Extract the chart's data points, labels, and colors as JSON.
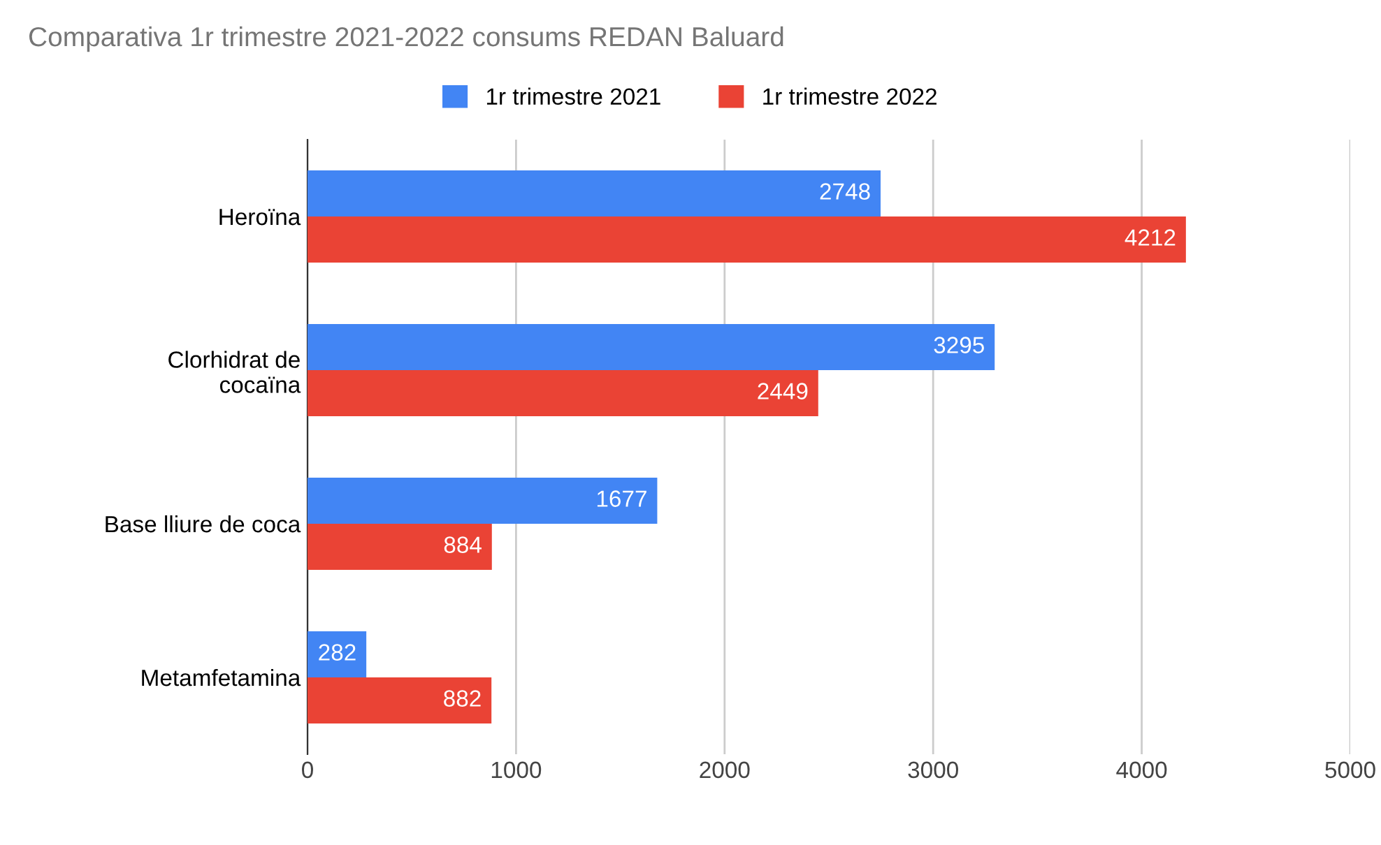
{
  "chart_data": {
    "type": "bar",
    "orientation": "horizontal",
    "title": "Comparativa 1r trimestre 2021-2022 consums REDAN Baluard",
    "categories": [
      "Heroïna",
      "Clorhidrat de\ncocaïna",
      "Base lliure de coca",
      "Metamfetamina"
    ],
    "series": [
      {
        "name": "1r trimestre 2021",
        "color": "#4285f4",
        "values": [
          2748,
          3295,
          1677,
          282
        ]
      },
      {
        "name": "1r trimestre 2022",
        "color": "#ea4335",
        "values": [
          4212,
          2449,
          884,
          882
        ]
      }
    ],
    "xlim": [
      0,
      5000
    ],
    "xticks": [
      0,
      1000,
      2000,
      3000,
      4000,
      5000
    ],
    "grid": "x",
    "legend": "top",
    "data_labels": true
  }
}
